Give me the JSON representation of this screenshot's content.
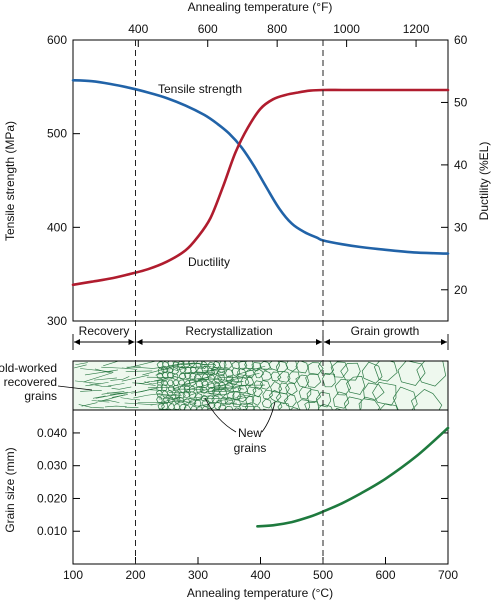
{
  "chart_data": [
    {
      "type": "line",
      "title": "",
      "top_axis": {
        "label": "Annealing temperature (°F)",
        "ticks": [
          400,
          600,
          800,
          1000,
          1200
        ]
      },
      "xlabel": "Annealing temperature (°C)",
      "xlim": [
        100,
        700
      ],
      "left_axis": {
        "label": "Tensile strength (MPa)",
        "ticks": [
          300,
          400,
          500,
          600
        ],
        "lim": [
          300,
          600
        ]
      },
      "right_axis": {
        "label": "Ductility (%EL)",
        "ticks": [
          20,
          30,
          40,
          50,
          60
        ],
        "lim": [
          15,
          60
        ]
      },
      "series": [
        {
          "name": "Tensile strength",
          "axis": "left",
          "color": "#2163a8",
          "x": [
            100,
            130,
            160,
            190,
            220,
            250,
            280,
            310,
            330,
            350,
            370,
            390,
            410,
            430,
            450,
            470,
            490,
            500,
            530,
            560,
            600,
            650,
            700
          ],
          "values": [
            557,
            556,
            553,
            549,
            544,
            538,
            530,
            520,
            511,
            500,
            485,
            465,
            442,
            420,
            404,
            395,
            389,
            386,
            382,
            379,
            376,
            373,
            372
          ]
        },
        {
          "name": "Ductility",
          "axis": "right",
          "color": "#b01c2e",
          "x": [
            100,
            130,
            160,
            190,
            220,
            250,
            280,
            300,
            320,
            340,
            360,
            380,
            400,
            420,
            440,
            460,
            480,
            500,
            530,
            560,
            600,
            650,
            700
          ],
          "values": [
            20.8,
            21.3,
            21.8,
            22.5,
            23.3,
            24.5,
            26.3,
            28.5,
            31.5,
            36.5,
            42.0,
            46.0,
            49.0,
            50.5,
            51.2,
            51.6,
            51.9,
            52.0,
            52.0,
            52.0,
            52.0,
            52.0,
            52.0
          ]
        }
      ],
      "dividers": [
        200,
        500
      ],
      "series_labels": [
        "Tensile strength",
        "Ductility"
      ],
      "regions": [
        "Recovery",
        "Recrystallization",
        "Grain growth"
      ]
    },
    {
      "type": "line",
      "xlabel": "Annealing temperature (°C)",
      "ylabel": "Grain size (mm)",
      "xlim": [
        100,
        700
      ],
      "ylim": [
        0.0,
        0.047
      ],
      "xticks": [
        100,
        200,
        300,
        400,
        500,
        600,
        700
      ],
      "yticks": [
        "0.010",
        "0.020",
        "0.030",
        "0.040"
      ],
      "series": [
        {
          "name": "",
          "color": "#1e7a3e",
          "x": [
            395,
            420,
            450,
            480,
            500,
            530,
            560,
            600,
            650,
            700
          ],
          "values": [
            0.0115,
            0.0118,
            0.0128,
            0.0145,
            0.016,
            0.0185,
            0.0215,
            0.026,
            0.033,
            0.0415
          ]
        }
      ],
      "micrograph_labels": {
        "cold_worked": [
          "Cold-worked",
          "and recovered",
          "grains"
        ],
        "new_grains": [
          "New",
          "grains"
        ]
      }
    }
  ]
}
